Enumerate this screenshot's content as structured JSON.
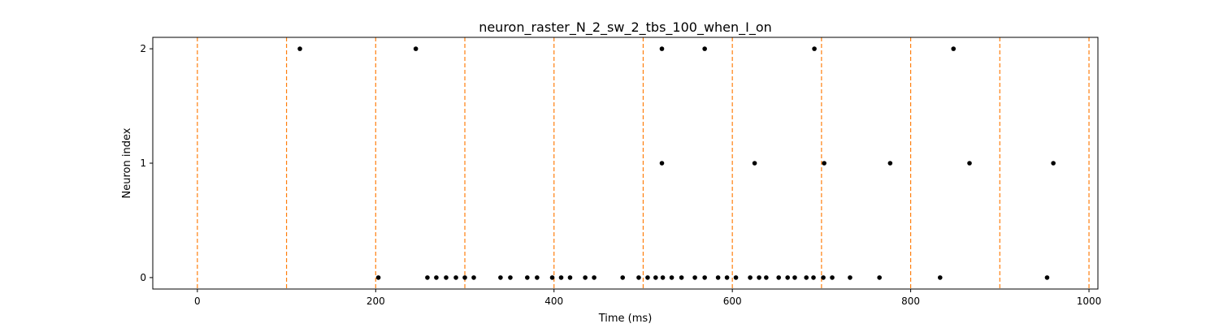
{
  "chart_data": {
    "type": "scatter",
    "title": "neuron_raster_N_2_sw_2_tbs_100_when_I_on",
    "xlabel": "Time (ms)",
    "ylabel": "Neuron index",
    "xlim": [
      -50,
      1010
    ],
    "ylim": [
      -0.1,
      2.1
    ],
    "x_ticks": [
      0,
      200,
      400,
      600,
      800,
      1000
    ],
    "y_ticks": [
      0,
      1,
      2
    ],
    "grid": false,
    "legend": "none",
    "vertical_markers": {
      "x": [
        0,
        100,
        200,
        300,
        400,
        500,
        600,
        700,
        800,
        900,
        1000
      ],
      "color": "#ff7f0e",
      "style": "dashed"
    },
    "marker_color": "#000000",
    "series": [
      {
        "values": [
          {
            "x": 203,
            "y": 0
          },
          {
            "x": 258,
            "y": 0
          },
          {
            "x": 268,
            "y": 0
          },
          {
            "x": 279,
            "y": 0
          },
          {
            "x": 290,
            "y": 0
          },
          {
            "x": 300,
            "y": 0
          },
          {
            "x": 310,
            "y": 0
          },
          {
            "x": 340,
            "y": 0
          },
          {
            "x": 351,
            "y": 0
          },
          {
            "x": 370,
            "y": 0
          },
          {
            "x": 381,
            "y": 0
          },
          {
            "x": 398,
            "y": 0
          },
          {
            "x": 408,
            "y": 0
          },
          {
            "x": 418,
            "y": 0
          },
          {
            "x": 435,
            "y": 0
          },
          {
            "x": 445,
            "y": 0
          },
          {
            "x": 477,
            "y": 0
          },
          {
            "x": 495,
            "y": 0
          },
          {
            "x": 505,
            "y": 0
          },
          {
            "x": 514,
            "y": 0
          },
          {
            "x": 522,
            "y": 0
          },
          {
            "x": 532,
            "y": 0
          },
          {
            "x": 543,
            "y": 0
          },
          {
            "x": 558,
            "y": 0
          },
          {
            "x": 569,
            "y": 0
          },
          {
            "x": 584,
            "y": 0
          },
          {
            "x": 594,
            "y": 0
          },
          {
            "x": 604,
            "y": 0
          },
          {
            "x": 620,
            "y": 0
          },
          {
            "x": 630,
            "y": 0
          },
          {
            "x": 638,
            "y": 0
          },
          {
            "x": 652,
            "y": 0
          },
          {
            "x": 662,
            "y": 0
          },
          {
            "x": 670,
            "y": 0
          },
          {
            "x": 683,
            "y": 0
          },
          {
            "x": 691,
            "y": 0
          },
          {
            "x": 702,
            "y": 0
          },
          {
            "x": 712,
            "y": 0
          },
          {
            "x": 732,
            "y": 0
          },
          {
            "x": 765,
            "y": 0
          },
          {
            "x": 833,
            "y": 0
          },
          {
            "x": 953,
            "y": 0
          },
          {
            "x": 521,
            "y": 1
          },
          {
            "x": 625,
            "y": 1
          },
          {
            "x": 703,
            "y": 1
          },
          {
            "x": 777,
            "y": 1
          },
          {
            "x": 866,
            "y": 1
          },
          {
            "x": 960,
            "y": 1
          },
          {
            "x": 115,
            "y": 2
          },
          {
            "x": 245,
            "y": 2
          },
          {
            "x": 521,
            "y": 2
          },
          {
            "x": 569,
            "y": 2
          },
          {
            "x": 692,
            "y": 2
          },
          {
            "x": 848,
            "y": 2
          }
        ]
      }
    ]
  }
}
